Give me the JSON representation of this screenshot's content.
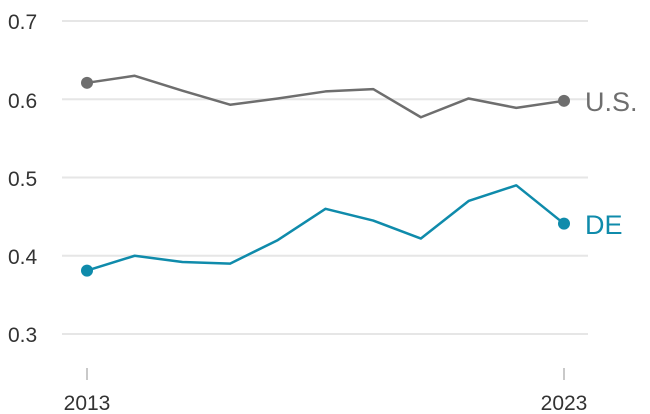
{
  "chart_data": {
    "type": "line",
    "title": "",
    "xlabel": "",
    "ylabel": "",
    "x": [
      2013,
      2014,
      2015,
      2016,
      2017,
      2018,
      2019,
      2020,
      2021,
      2022,
      2023
    ],
    "xlim": [
      2013,
      2023
    ],
    "ylim": [
      0.3,
      0.7
    ],
    "yticks": [
      "0.7",
      "0.6",
      "0.5",
      "0.4",
      "0.3"
    ],
    "xticks": [
      "2013",
      "2023"
    ],
    "grid": true,
    "legend": "direct labels at line ends",
    "series": [
      {
        "name": "U.S.",
        "color": "#6e6e6e",
        "values": [
          0.621,
          0.63,
          0.611,
          0.593,
          0.601,
          0.61,
          0.613,
          0.577,
          0.601,
          0.589,
          0.598
        ]
      },
      {
        "name": "DE",
        "color": "#0f8bab",
        "values": [
          0.381,
          0.4,
          0.392,
          0.39,
          0.42,
          0.46,
          0.445,
          0.422,
          0.47,
          0.49,
          0.441
        ]
      }
    ]
  }
}
